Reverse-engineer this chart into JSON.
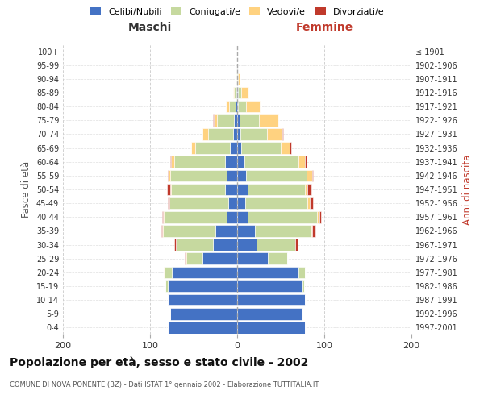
{
  "age_groups": [
    "0-4",
    "5-9",
    "10-14",
    "15-19",
    "20-24",
    "25-29",
    "30-34",
    "35-39",
    "40-44",
    "45-49",
    "50-54",
    "55-59",
    "60-64",
    "65-69",
    "70-74",
    "75-79",
    "80-84",
    "85-89",
    "90-94",
    "95-99",
    "100+"
  ],
  "birth_years": [
    "1997-2001",
    "1992-1996",
    "1987-1991",
    "1982-1986",
    "1977-1981",
    "1972-1976",
    "1967-1971",
    "1962-1966",
    "1957-1961",
    "1952-1956",
    "1947-1951",
    "1942-1946",
    "1937-1941",
    "1932-1936",
    "1927-1931",
    "1922-1926",
    "1917-1921",
    "1912-1916",
    "1907-1911",
    "1902-1906",
    "≤ 1901"
  ],
  "maschi": {
    "celibi": [
      80,
      77,
      80,
      80,
      75,
      40,
      28,
      25,
      12,
      10,
      14,
      12,
      14,
      8,
      5,
      4,
      2,
      1,
      0,
      0,
      0
    ],
    "coniugati": [
      0,
      0,
      0,
      2,
      8,
      18,
      42,
      60,
      72,
      68,
      62,
      65,
      58,
      40,
      28,
      19,
      7,
      3,
      1,
      0,
      0
    ],
    "vedovi": [
      0,
      0,
      0,
      0,
      1,
      1,
      0,
      1,
      1,
      0,
      1,
      2,
      4,
      5,
      7,
      4,
      4,
      1,
      0,
      0,
      0
    ],
    "divorziati": [
      0,
      0,
      0,
      0,
      0,
      1,
      2,
      1,
      1,
      2,
      4,
      1,
      1,
      0,
      0,
      1,
      0,
      0,
      0,
      0,
      0
    ]
  },
  "femmine": {
    "nubili": [
      78,
      75,
      78,
      75,
      70,
      35,
      22,
      20,
      12,
      9,
      12,
      10,
      8,
      5,
      4,
      3,
      1,
      1,
      0,
      0,
      0
    ],
    "coniugate": [
      0,
      0,
      0,
      2,
      8,
      22,
      45,
      65,
      80,
      72,
      66,
      70,
      62,
      45,
      30,
      22,
      9,
      4,
      1,
      0,
      0
    ],
    "vedove": [
      0,
      0,
      0,
      0,
      0,
      0,
      0,
      1,
      2,
      2,
      3,
      6,
      8,
      10,
      18,
      22,
      16,
      8,
      2,
      0,
      0
    ],
    "divorziate": [
      0,
      0,
      0,
      0,
      0,
      0,
      2,
      4,
      2,
      4,
      4,
      1,
      2,
      2,
      1,
      0,
      0,
      0,
      0,
      0,
      0
    ]
  },
  "colors": {
    "celibi": "#4472C4",
    "coniugati": "#C6D99F",
    "vedovi": "#FFD280",
    "divorziati": "#C0392B"
  },
  "xlim": 200,
  "title": "Popolazione per età, sesso e stato civile - 2002",
  "subtitle": "COMUNE DI NOVA PONENTE (BZ) - Dati ISTAT 1° gennaio 2002 - Elaborazione TUTTITALIA.IT",
  "ylabel_left": "Fasce di età",
  "ylabel_right": "Anni di nascita",
  "header_maschi": "Maschi",
  "header_femmine": "Femmine",
  "legend_labels": [
    "Celibi/Nubili",
    "Coniugati/e",
    "Vedovi/e",
    "Divorziati/e"
  ],
  "bg_color": "#ffffff",
  "grid_color": "#cccccc",
  "text_color_dark": "#333333",
  "text_color_red": "#C0392B"
}
